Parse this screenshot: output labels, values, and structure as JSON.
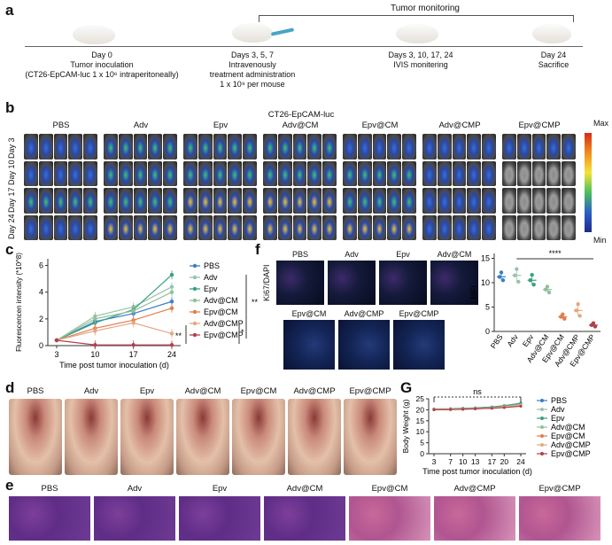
{
  "panels": {
    "a": "a",
    "b": "b",
    "c": "c",
    "d": "d",
    "e": "e",
    "f": "f",
    "g": "G"
  },
  "timeline": {
    "monitoring": "Tumor monitoring",
    "steps": [
      {
        "l1": "Day 0",
        "l2": "Tumor inoculation",
        "l3": "(CT26-EpCAM-luc 1 x 10⁶ intraperitoneally)",
        "l4": ""
      },
      {
        "l1": "Days 3, 5, 7",
        "l2": "Intravenously",
        "l3": "treatment administration",
        "l4": "1 x 10⁹ per mouse"
      },
      {
        "l1": "Days 3, 10, 17, 24",
        "l2": "IVIS monitering",
        "l3": "",
        "l4": ""
      },
      {
        "l1": "Day 24",
        "l2": "Sacrifice",
        "l3": "",
        "l4": ""
      }
    ]
  },
  "groups": [
    "PBS",
    "Adv",
    "Epv",
    "Adv@CM",
    "Epv@CM",
    "Adv@CMP",
    "Epv@CMP"
  ],
  "ivis": {
    "cellline": "CT26-EpCAM-luc",
    "rows": [
      "Day 3",
      "Day 10",
      "Day 17",
      "Day 24"
    ],
    "scale_max": "Max",
    "scale_min": "Min"
  },
  "colors": {
    "PBS": "#3a7ec4",
    "Adv": "#9ac4a9",
    "Epv": "#3aa07f",
    "Adv@CM": "#8fc09b",
    "Epv@CM": "#e07d4e",
    "Adv@CMP": "#e2a882",
    "Epv@CMP": "#b2404b"
  },
  "chart_data": [
    {
      "type": "line",
      "ylabel": "Fluorescencen intensity (*10^8)",
      "xlabel": "Time post tumor inoculation (d)",
      "x": [
        3,
        10,
        17,
        24
      ],
      "yticks": [
        0,
        2,
        4,
        6
      ],
      "ylim": [
        0,
        6.5
      ],
      "series": [
        {
          "name": "PBS",
          "values": [
            0.4,
            1.8,
            2.4,
            3.3
          ]
        },
        {
          "name": "Adv",
          "values": [
            0.4,
            2.2,
            2.9,
            4.4
          ]
        },
        {
          "name": "Epv",
          "values": [
            0.4,
            1.7,
            2.7,
            5.3
          ]
        },
        {
          "name": "Adv@CM",
          "values": [
            0.4,
            2.0,
            2.6,
            4.0
          ]
        },
        {
          "name": "Epv@CM",
          "values": [
            0.4,
            1.3,
            1.9,
            2.8
          ]
        },
        {
          "name": "Adv@CMP",
          "values": [
            0.4,
            1.1,
            1.7,
            0.9
          ]
        },
        {
          "name": "Epv@CMP",
          "values": [
            0.4,
            0.05,
            0.05,
            0.05
          ]
        }
      ],
      "sig": [
        "**",
        "*",
        "**"
      ],
      "legend": "right"
    },
    {
      "type": "scatter",
      "ylabel": "MFI",
      "yticks": [
        0,
        5,
        10,
        15
      ],
      "ylim": [
        0,
        16
      ],
      "categories": [
        "PBS",
        "Adv",
        "Epv",
        "Adv@CM",
        "Epv@CM",
        "Adv@CMP",
        "Epv@CMP"
      ],
      "means": [
        11.2,
        11.5,
        10.5,
        8.6,
        3.0,
        4.3,
        1.3
      ],
      "points": [
        [
          11.2,
          12.1,
          10.5
        ],
        [
          11.5,
          12.8,
          10.2
        ],
        [
          10.5,
          11.6,
          9.6
        ],
        [
          8.6,
          9.2,
          8.0
        ],
        [
          3.0,
          3.5,
          2.6
        ],
        [
          4.3,
          5.6,
          3.2
        ],
        [
          1.3,
          1.7,
          1.0
        ]
      ],
      "sig": "****"
    },
    {
      "type": "line",
      "ylabel": "Body Weight (g)",
      "xlabel": "Time post tumor inoculation (d)",
      "x": [
        3,
        7,
        10,
        13,
        17,
        20,
        24
      ],
      "yticks": [
        0,
        5,
        10,
        15,
        20,
        25
      ],
      "ylim": [
        0,
        25
      ],
      "series": [
        {
          "name": "PBS",
          "values": [
            20.3,
            20.4,
            20.6,
            20.8,
            21.2,
            21.8,
            23.0
          ]
        },
        {
          "name": "Adv",
          "values": [
            20.2,
            20.3,
            20.5,
            20.7,
            21.0,
            21.6,
            22.6
          ]
        },
        {
          "name": "Epv",
          "values": [
            20.4,
            20.5,
            20.7,
            20.9,
            21.3,
            21.9,
            22.9
          ]
        },
        {
          "name": "Adv@CM",
          "values": [
            20.1,
            20.2,
            20.3,
            20.5,
            20.8,
            21.3,
            22.1
          ]
        },
        {
          "name": "Epv@CM",
          "values": [
            20.0,
            20.1,
            20.3,
            20.5,
            20.7,
            21.1,
            21.8
          ]
        },
        {
          "name": "Adv@CMP",
          "values": [
            20.2,
            20.3,
            20.4,
            20.6,
            20.9,
            21.4,
            22.2
          ]
        },
        {
          "name": "Epv@CMP",
          "values": [
            20.0,
            20.1,
            20.2,
            20.4,
            20.7,
            21.0,
            21.6
          ]
        }
      ],
      "sig": "ns",
      "legend": "right"
    }
  ],
  "ki67": {
    "label": "Ki67/DAPI",
    "top": [
      "PBS",
      "Adv",
      "Epv",
      "Adv@CM"
    ],
    "bottom": [
      "Epv@CM",
      "Adv@CMP",
      "Epv@CMP"
    ]
  }
}
